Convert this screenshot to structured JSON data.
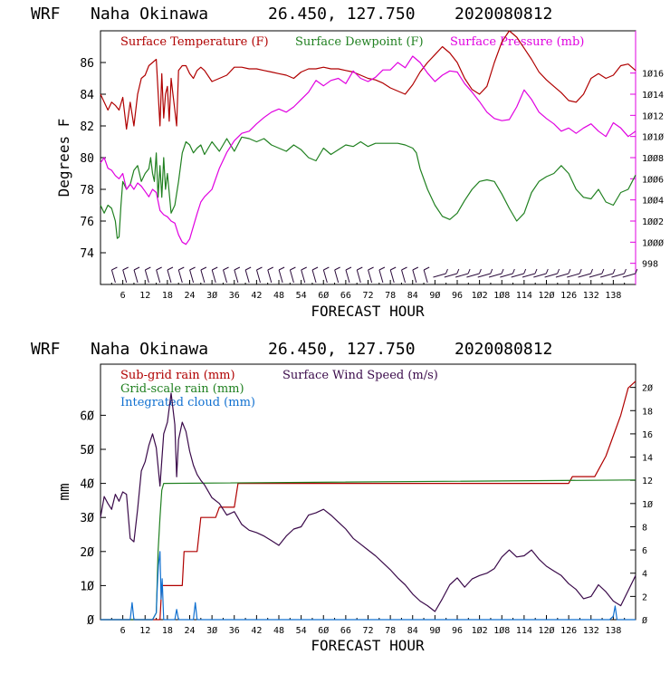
{
  "chart_data": [
    {
      "type": "line",
      "header": {
        "model": "WRF",
        "location": "Naha Okinawa",
        "coords": "26.450, 127.750",
        "run": "2020080812"
      },
      "xlabel": "FORECAST HOUR",
      "ylabel": "Degrees F",
      "xlim": [
        0,
        144
      ],
      "x_ticks": [
        6,
        12,
        18,
        24,
        30,
        36,
        42,
        48,
        54,
        60,
        66,
        72,
        78,
        84,
        90,
        96,
        102,
        108,
        114,
        120,
        126,
        132,
        138
      ],
      "x_tick_labels": [
        "6",
        "12",
        "18",
        "24",
        "3Ø",
        "36",
        "42",
        "48",
        "54",
        "6Ø",
        "66",
        "72",
        "78",
        "84",
        "9Ø",
        "96",
        "1Ø2",
        "1Ø8",
        "114",
        "12Ø",
        "126",
        "132",
        "138"
      ],
      "ylim_left": [
        72,
        88
      ],
      "y_left_ticks": [
        74,
        76,
        78,
        80,
        82,
        84,
        86
      ],
      "ylim_right": [
        996,
        1020
      ],
      "y_right_ticks": [
        998,
        1000,
        1002,
        1004,
        1006,
        1008,
        1010,
        1012,
        1014,
        1016
      ],
      "y_right_tick_labels": [
        "998",
        "1ØØØ",
        "1ØØ2",
        "1ØØ4",
        "1ØØ6",
        "1ØØ8",
        "1Ø1Ø",
        "1Ø12",
        "1Ø14",
        "1Ø16"
      ],
      "legend": [
        {
          "label": "Surface Temperature (F)",
          "color": "#b00000"
        },
        {
          "label": "Surface Dewpoint (F)",
          "color": "#208020"
        },
        {
          "label": "Surface Pressure (mb)",
          "color": "#e000e0"
        }
      ],
      "series": [
        {
          "name": "Surface Temperature (F)",
          "axis": "left",
          "color": "#b00000",
          "x": [
            0,
            1,
            2,
            3,
            4,
            5,
            6,
            7,
            8,
            9,
            10,
            11,
            12,
            13,
            14,
            15,
            16,
            16.5,
            17,
            17.5,
            18,
            18.5,
            19,
            19.5,
            20,
            20.5,
            21,
            22,
            23,
            24,
            25,
            26,
            27,
            28,
            30,
            32,
            34,
            36,
            38,
            40,
            42,
            44,
            46,
            48,
            50,
            52,
            54,
            56,
            58,
            60,
            62,
            64,
            66,
            68,
            70,
            72,
            74,
            76,
            78,
            80,
            82,
            84,
            86,
            88,
            90,
            92,
            94,
            96,
            98,
            100,
            102,
            104,
            106,
            108,
            110,
            112,
            114,
            116,
            118,
            120,
            122,
            124,
            126,
            128,
            130,
            132,
            134,
            136,
            138,
            140,
            142,
            144
          ],
          "y": [
            84.0,
            83.5,
            83.0,
            83.5,
            83.3,
            83.0,
            83.8,
            81.8,
            83.5,
            82.0,
            84.0,
            85.0,
            85.2,
            85.8,
            86.0,
            86.2,
            82.0,
            85.3,
            82.5,
            84.0,
            84.5,
            82.3,
            85.0,
            84.0,
            83.0,
            82.0,
            85.5,
            85.8,
            85.8,
            85.3,
            85.0,
            85.5,
            85.7,
            85.5,
            84.8,
            85.0,
            85.2,
            85.7,
            85.7,
            85.6,
            85.6,
            85.5,
            85.4,
            85.3,
            85.2,
            85.0,
            85.4,
            85.6,
            85.6,
            85.7,
            85.6,
            85.6,
            85.5,
            85.4,
            85.2,
            85.0,
            84.9,
            84.7,
            84.4,
            84.2,
            84.0,
            84.6,
            85.4,
            86.0,
            86.5,
            87.0,
            86.6,
            86.0,
            85.0,
            84.3,
            84.0,
            84.5,
            86.0,
            87.3,
            88.0,
            87.6,
            86.9,
            86.2,
            85.4,
            84.9,
            84.5,
            84.1,
            83.6,
            83.5,
            84.0,
            85.0,
            85.3,
            85.0,
            85.2,
            85.8,
            85.9,
            85.5
          ]
        },
        {
          "name": "Surface Dewpoint (F)",
          "axis": "left",
          "color": "#208020",
          "x": [
            0,
            1,
            2,
            3,
            4,
            4.5,
            5,
            5.5,
            6,
            7,
            8,
            9,
            10,
            11,
            12,
            13,
            13.5,
            14,
            14.5,
            15,
            15.5,
            16,
            16.5,
            17,
            17.5,
            18,
            19,
            20,
            21,
            22,
            23,
            24,
            25,
            26,
            27,
            28,
            30,
            32,
            34,
            36,
            38,
            40,
            42,
            44,
            46,
            48,
            50,
            52,
            54,
            56,
            58,
            60,
            62,
            64,
            66,
            68,
            70,
            72,
            74,
            76,
            78,
            80,
            82,
            84,
            85,
            86,
            88,
            90,
            92,
            94,
            96,
            98,
            100,
            102,
            104,
            106,
            108,
            110,
            112,
            114,
            116,
            118,
            120,
            122,
            124,
            126,
            128,
            130,
            132,
            134,
            136,
            138,
            140,
            142,
            144
          ],
          "y": [
            77.0,
            76.5,
            77.0,
            76.8,
            76.0,
            74.9,
            75.0,
            77.0,
            78.5,
            78.0,
            78.3,
            79.2,
            79.5,
            78.5,
            79.0,
            79.3,
            80.0,
            79.0,
            78.5,
            80.3,
            77.5,
            79.5,
            77.5,
            80.0,
            78.0,
            79.0,
            76.5,
            77.0,
            78.5,
            80.3,
            81.0,
            80.8,
            80.3,
            80.6,
            80.8,
            80.2,
            81.0,
            80.4,
            81.2,
            80.4,
            81.3,
            81.2,
            81.0,
            81.2,
            80.8,
            80.6,
            80.4,
            80.8,
            80.5,
            80.0,
            79.8,
            80.6,
            80.2,
            80.5,
            80.8,
            80.7,
            81.0,
            80.7,
            80.9,
            80.9,
            80.9,
            80.9,
            80.8,
            80.6,
            80.3,
            79.3,
            78.0,
            77.0,
            76.3,
            76.1,
            76.5,
            77.3,
            78.0,
            78.5,
            78.6,
            78.5,
            77.7,
            76.8,
            76.0,
            76.5,
            77.8,
            78.5,
            78.8,
            79.0,
            79.5,
            79.0,
            78.0,
            77.5,
            77.4,
            78.0,
            77.2,
            77.0,
            77.8,
            78.0,
            78.9
          ]
        },
        {
          "name": "Surface Pressure (mb)",
          "axis": "right",
          "color": "#e000e0",
          "x": [
            0,
            1,
            2,
            3,
            4,
            5,
            6,
            7,
            8,
            9,
            10,
            11,
            12,
            13,
            14,
            15,
            16,
            17,
            18,
            19,
            20,
            21,
            22,
            23,
            24,
            25,
            26,
            27,
            28,
            30,
            32,
            34,
            36,
            38,
            40,
            42,
            44,
            46,
            48,
            50,
            52,
            54,
            56,
            58,
            60,
            62,
            64,
            66,
            68,
            70,
            72,
            74,
            76,
            78,
            80,
            82,
            84,
            86,
            88,
            90,
            92,
            94,
            96,
            98,
            100,
            102,
            104,
            106,
            108,
            110,
            112,
            114,
            116,
            118,
            120,
            122,
            124,
            126,
            128,
            130,
            132,
            134,
            136,
            138,
            140,
            142,
            144
          ],
          "y": [
            1007.5,
            1008.0,
            1007.0,
            1006.8,
            1006.3,
            1006.0,
            1006.5,
            1005.0,
            1005.5,
            1005.0,
            1005.6,
            1005.3,
            1004.8,
            1004.3,
            1005.0,
            1004.7,
            1003.0,
            1002.6,
            1002.4,
            1002.0,
            1001.8,
            1000.7,
            1000.0,
            999.8,
            1000.3,
            1001.5,
            1002.7,
            1003.8,
            1004.3,
            1005.0,
            1007.0,
            1008.5,
            1009.6,
            1010.3,
            1010.5,
            1011.2,
            1011.8,
            1012.3,
            1012.6,
            1012.3,
            1012.8,
            1013.5,
            1014.2,
            1015.3,
            1014.8,
            1015.3,
            1015.5,
            1015.0,
            1016.2,
            1015.5,
            1015.2,
            1015.6,
            1016.3,
            1016.3,
            1017.0,
            1016.5,
            1017.6,
            1017.0,
            1016.0,
            1015.2,
            1015.8,
            1016.2,
            1016.1,
            1015.0,
            1014.2,
            1013.3,
            1012.3,
            1011.7,
            1011.5,
            1011.6,
            1012.8,
            1014.4,
            1013.5,
            1012.3,
            1011.7,
            1011.2,
            1010.5,
            1010.8,
            1010.3,
            1010.8,
            1011.2,
            1010.5,
            1010.0,
            1011.3,
            1010.8,
            1010.0,
            1010.5
          ]
        }
      ],
      "wind_barbs": {
        "x_start": 4,
        "x_step": 3,
        "directions": [
          0
        ]
      }
    },
    {
      "type": "line",
      "header": {
        "model": "WRF",
        "location": "Naha Okinawa",
        "coords": "26.450, 127.750",
        "run": "2020080812"
      },
      "xlabel": "FORECAST HOUR",
      "ylabel": "mm",
      "xlim": [
        0,
        144
      ],
      "x_ticks": [
        6,
        12,
        18,
        24,
        30,
        36,
        42,
        48,
        54,
        60,
        66,
        72,
        78,
        84,
        90,
        96,
        102,
        108,
        114,
        120,
        126,
        132,
        138
      ],
      "x_tick_labels": [
        "6",
        "12",
        "18",
        "24",
        "3Ø",
        "36",
        "42",
        "48",
        "54",
        "6Ø",
        "66",
        "72",
        "78",
        "84",
        "9Ø",
        "96",
        "1Ø2",
        "1Ø8",
        "114",
        "12Ø",
        "126",
        "132",
        "138"
      ],
      "ylim_left": [
        0,
        75
      ],
      "y_left_ticks": [
        0,
        10,
        20,
        30,
        40,
        50,
        60
      ],
      "y_left_tick_labels": [
        "Ø",
        "1Ø",
        "2Ø",
        "3Ø",
        "4Ø",
        "5Ø",
        "6Ø"
      ],
      "ylim_right": [
        0,
        22
      ],
      "y_right_ticks": [
        0,
        2,
        4,
        6,
        8,
        10,
        12,
        14,
        16,
        18,
        20
      ],
      "y_right_tick_labels": [
        "Ø",
        "2",
        "4",
        "6",
        "8",
        "1Ø",
        "12",
        "14",
        "16",
        "18",
        "2Ø"
      ],
      "legend": [
        {
          "label": "Sub-grid rain (mm)",
          "color": "#b00000"
        },
        {
          "label": "Surface Wind Speed (m/s)",
          "color": "#3a0a4a"
        },
        {
          "label": "Grid-scale rain (mm)",
          "color": "#208020"
        },
        {
          "label": "Integrated cloud (mm)",
          "color": "#1070d0"
        }
      ],
      "series": [
        {
          "name": "Sub-grid rain (mm)",
          "axis": "left",
          "color": "#b00000",
          "x": [
            0,
            16,
            16.5,
            22,
            22.5,
            26,
            27,
            31,
            32,
            36,
            37,
            126,
            127,
            133,
            134,
            136,
            138,
            140,
            142,
            144
          ],
          "y": [
            0,
            0,
            10,
            10,
            20,
            20,
            30,
            30,
            33,
            33,
            40,
            40,
            42,
            42,
            44,
            48,
            54,
            60,
            68,
            70
          ]
        },
        {
          "name": "Grid-scale rain (mm)",
          "axis": "left",
          "color": "#208020",
          "x": [
            0,
            14,
            15,
            15.5,
            16,
            16.5,
            17,
            144
          ],
          "y": [
            0,
            0,
            2,
            20,
            30,
            38,
            40,
            41
          ]
        },
        {
          "name": "Surface Wind Speed (m/s)",
          "axis": "right",
          "color": "#3a0a4a",
          "x": [
            0,
            1,
            2,
            3,
            4,
            5,
            6,
            7,
            8,
            9,
            10,
            11,
            12,
            13,
            14,
            15,
            16,
            17,
            18,
            19,
            20,
            20.5,
            21,
            22,
            23,
            24,
            25,
            26,
            27,
            28,
            30,
            32,
            34,
            36,
            38,
            40,
            42,
            44,
            46,
            48,
            50,
            52,
            54,
            56,
            58,
            60,
            62,
            64,
            66,
            68,
            70,
            72,
            74,
            76,
            78,
            80,
            82,
            84,
            86,
            88,
            90,
            92,
            94,
            96,
            98,
            100,
            102,
            104,
            106,
            108,
            110,
            112,
            114,
            116,
            118,
            120,
            122,
            124,
            126,
            128,
            130,
            132,
            134,
            136,
            138,
            140,
            142,
            144
          ],
          "y": [
            8.8,
            10.6,
            10.0,
            9.5,
            10.8,
            10.2,
            11.0,
            10.8,
            7.0,
            6.7,
            9.5,
            12.8,
            13.6,
            15.0,
            16.0,
            14.8,
            11.5,
            16.0,
            17.0,
            19.5,
            16.8,
            12.3,
            15.5,
            17.0,
            16.2,
            14.5,
            13.3,
            12.5,
            12.0,
            11.6,
            10.5,
            10.0,
            9.0,
            9.3,
            8.2,
            7.7,
            7.5,
            7.2,
            6.8,
            6.4,
            7.2,
            7.8,
            8.0,
            9.0,
            9.2,
            9.5,
            9.0,
            8.4,
            7.8,
            7.0,
            6.5,
            6.0,
            5.5,
            4.9,
            4.3,
            3.6,
            3.0,
            2.2,
            1.6,
            1.2,
            0.7,
            1.8,
            3.0,
            3.6,
            2.8,
            3.5,
            3.8,
            4.0,
            4.4,
            5.4,
            6.0,
            5.4,
            5.5,
            6.0,
            5.2,
            4.6,
            4.2,
            3.8,
            3.1,
            2.6,
            1.8,
            2.0,
            3.0,
            2.4,
            1.6,
            1.2,
            2.5,
            3.8
          ]
        },
        {
          "name": "Integrated cloud (mm)",
          "axis": "left",
          "color": "#1070d0",
          "x": [
            0,
            8,
            8.5,
            9,
            14,
            15,
            15.3,
            15.6,
            16,
            16.3,
            16.6,
            17,
            20,
            20.5,
            21,
            25,
            25.5,
            26,
            137,
            138,
            138.5,
            139,
            144
          ],
          "y": [
            0,
            0,
            5,
            0,
            0,
            2,
            10,
            16,
            20,
            6,
            12,
            0,
            0,
            3,
            0,
            0,
            5,
            0,
            0,
            1,
            4,
            0,
            0
          ]
        }
      ]
    }
  ]
}
